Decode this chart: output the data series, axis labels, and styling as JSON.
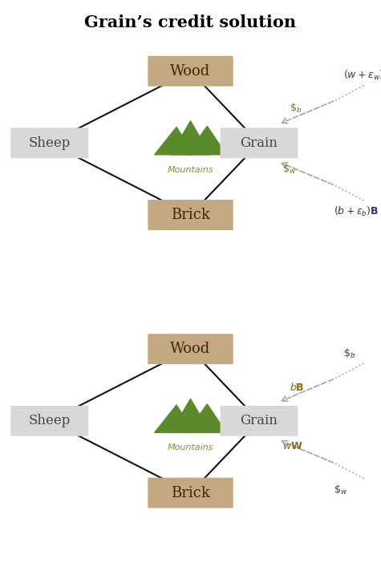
{
  "title": "Grain’s credit solution",
  "title_fontsize": 15,
  "bg_color": "#ffffff",
  "node_wood_color": "#C4A882",
  "node_brick_color": "#C4A882",
  "node_sheep_color": "#d8d8d8",
  "node_grain_color": "#d8d8d8",
  "mountain_color": "#5a8a2a",
  "mountains_label_color": "#8B8B3A",
  "line_color": "#111111",
  "arrow_color": "#aaaaaa",
  "diagram1": {
    "arrow1_label_top": "$(w + \\epsilon_w)\\mathbf{W}$",
    "arrow1_label_bot": "$\\$_b$",
    "arrow2_label_top": "$\\$_w$",
    "arrow2_label_bot": "$(b + \\epsilon_b)\\mathbf{B}$",
    "arrow1_top_is_dotted": true,
    "arrow2_bot_is_dotted": true
  },
  "diagram2": {
    "arrow1_label_top": "$\\$_b$",
    "arrow1_label_bot": "$b\\mathbf{B}$",
    "arrow2_label_top": "$w\\mathbf{W}$",
    "arrow2_label_bot": "$\\$_w$",
    "arrow1_top_is_dotted": true,
    "arrow2_bot_is_dotted": true
  }
}
